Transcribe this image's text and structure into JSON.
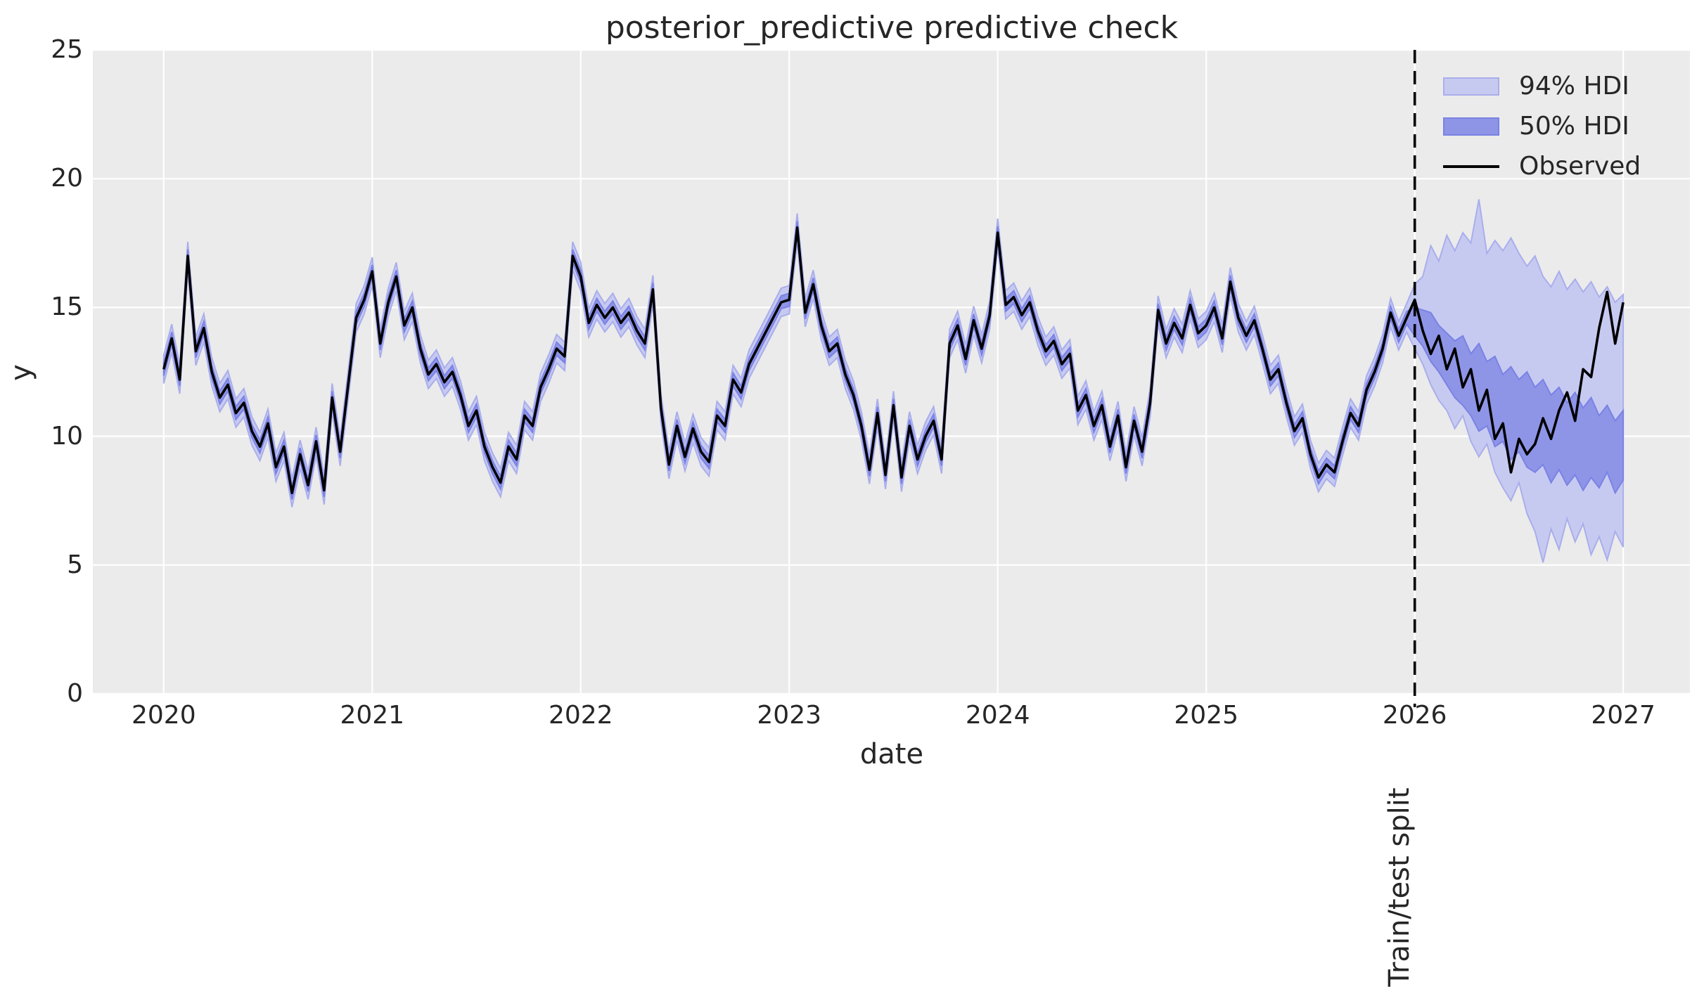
{
  "chart_data": {
    "type": "line",
    "title": "posterior_predictive predictive check",
    "x_axis": {
      "label": "date",
      "ticks": [
        2020,
        2021,
        2022,
        2023,
        2024,
        2025,
        2026,
        2027
      ],
      "tick_labels": [
        "2020",
        "2021",
        "2022",
        "2023",
        "2024",
        "2025",
        "2026",
        "2027"
      ],
      "lim": [
        2019.66,
        2027.32
      ]
    },
    "y_axis": {
      "label": "y",
      "ticks": [
        0,
        5,
        10,
        15,
        20,
        25
      ],
      "tick_labels": [
        "0",
        "5",
        "10",
        "15",
        "20",
        "25"
      ],
      "lim": [
        0,
        25
      ]
    },
    "grid": true,
    "legend_position": "upper right",
    "x": {
      "start": 2020,
      "step": 0.0384615385,
      "count": 183,
      "unit": "years"
    },
    "series": {
      "observed": [
        12.6,
        13.8,
        12.2,
        17.0,
        13.3,
        14.2,
        12.5,
        11.5,
        12.0,
        10.9,
        11.3,
        10.2,
        9.6,
        10.5,
        8.8,
        9.6,
        7.8,
        9.3,
        8.1,
        9.8,
        7.9,
        11.5,
        9.4,
        12.0,
        14.6,
        15.3,
        16.4,
        13.6,
        15.2,
        16.2,
        14.3,
        15.0,
        13.4,
        12.4,
        12.8,
        12.1,
        12.5,
        11.6,
        10.4,
        11.0,
        9.6,
        8.8,
        8.2,
        9.6,
        9.1,
        10.8,
        10.4,
        11.9,
        12.6,
        13.4,
        13.1,
        17.0,
        16.2,
        14.4,
        15.1,
        14.6,
        15.0,
        14.4,
        14.8,
        14.1,
        13.6,
        15.7,
        11.1,
        8.9,
        10.4,
        9.2,
        10.3,
        9.4,
        9.0,
        10.8,
        10.4,
        12.2,
        11.7,
        12.8,
        13.4,
        14.0,
        14.6,
        15.2,
        15.3,
        18.1,
        14.8,
        15.9,
        14.3,
        13.3,
        13.6,
        12.4,
        11.6,
        10.4,
        8.7,
        10.9,
        8.5,
        11.2,
        8.4,
        10.4,
        9.1,
        10.0,
        10.6,
        9.1,
        13.6,
        14.3,
        13.0,
        14.5,
        13.4,
        14.7,
        17.9,
        15.1,
        15.4,
        14.7,
        15.2,
        14.1,
        13.3,
        13.7,
        12.8,
        13.2,
        11.0,
        11.6,
        10.4,
        11.2,
        9.6,
        10.8,
        8.8,
        10.6,
        9.4,
        11.3,
        14.9,
        13.6,
        14.4,
        13.8,
        15.1,
        14.0,
        14.3,
        15.0,
        13.8,
        16.0,
        14.6,
        13.9,
        14.5,
        13.4,
        12.2,
        12.6,
        11.3,
        10.2,
        10.7,
        9.3,
        8.4,
        8.9,
        8.6,
        9.8,
        10.9,
        10.4,
        11.8,
        12.5,
        13.4,
        14.8,
        13.9,
        14.6,
        15.3,
        14.1,
        13.2,
        13.9,
        12.6,
        13.4,
        11.9,
        12.6,
        11.0,
        11.8,
        9.9,
        10.5,
        8.6,
        9.9,
        9.3,
        9.7,
        10.7,
        9.9,
        11.0,
        11.7,
        10.6,
        12.6,
        12.3,
        14.2,
        15.6,
        13.6,
        15.2
      ]
    },
    "hdi_bands": {
      "train_94_half_width": 0.55,
      "train_50_half_width": 0.25,
      "test_start_index": 156,
      "test_hi94": [
        15.9,
        16.2,
        17.4,
        16.8,
        17.8,
        17.2,
        17.9,
        17.5,
        19.2,
        17.1,
        17.6,
        17.2,
        17.7,
        17.1,
        16.6,
        17.0,
        16.2,
        15.8,
        16.4,
        15.7,
        16.1,
        15.6,
        16.0,
        15.4,
        15.8,
        15.2,
        15.5
      ],
      "test_lo94": [
        13.4,
        12.8,
        12.0,
        11.4,
        11.0,
        10.3,
        10.8,
        9.8,
        9.2,
        9.7,
        8.6,
        8.0,
        7.5,
        8.2,
        7.0,
        6.3,
        5.1,
        6.4,
        5.6,
        6.8,
        5.9,
        6.6,
        5.4,
        6.1,
        5.2,
        6.3,
        5.7
      ],
      "test_hi50": [
        15.0,
        14.9,
        14.8,
        14.3,
        14.0,
        13.7,
        13.9,
        13.2,
        13.6,
        12.9,
        13.1,
        12.4,
        12.7,
        12.2,
        12.5,
        11.9,
        12.2,
        11.6,
        11.9,
        11.3,
        11.7,
        11.1,
        11.5,
        10.8,
        11.2,
        10.6,
        11.0
      ],
      "test_lo50": [
        13.9,
        13.5,
        12.9,
        12.5,
        12.0,
        11.5,
        11.2,
        10.8,
        10.2,
        10.4,
        9.6,
        9.8,
        9.1,
        9.4,
        8.8,
        8.6,
        8.9,
        8.2,
        8.7,
        8.1,
        8.5,
        7.9,
        8.4,
        8.0,
        8.6,
        7.8,
        8.3
      ]
    },
    "split": {
      "x": 2026,
      "label": "Train/test split"
    },
    "legend": [
      {
        "label": "94% HDI",
        "type": "patch",
        "fill": "#c7caf0",
        "edge": "#a9aeec"
      },
      {
        "label": "50% HDI",
        "type": "patch",
        "fill": "#8e95e7",
        "edge": "#7a82e4"
      },
      {
        "label": "Observed",
        "type": "line",
        "color": "#000000"
      }
    ],
    "colors": {
      "axes_background": "#ebebeb",
      "grid": "#ffffff",
      "observed": "#000000",
      "split_line": "#000000",
      "text": "#262626"
    }
  }
}
